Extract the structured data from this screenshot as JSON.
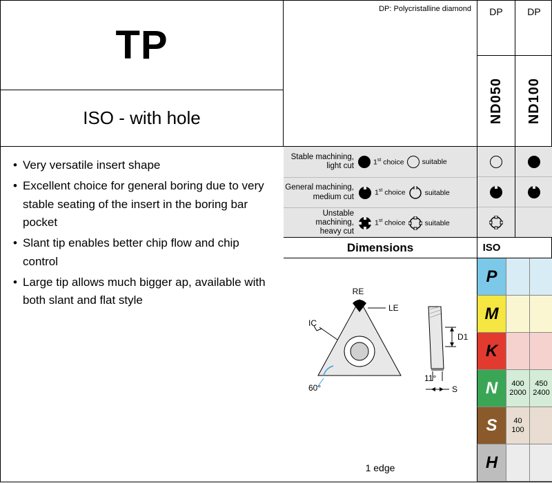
{
  "title": "TP",
  "subtitle": "ISO - with hole",
  "note": "DP: Polycristalline diamond",
  "grades": {
    "col1": {
      "dp": "DP",
      "code": "ND050"
    },
    "col2": {
      "dp": "DP",
      "code": "ND100"
    }
  },
  "bullets": [
    "Very versatile insert shape",
    "Excellent choice for general boring due to very stable seating of the insert in the boring bar pocket",
    "Slant tip enables better chip flow and chip control",
    "Large tip allows much bigger ap, available with both slant and flat style"
  ],
  "legend": {
    "rows": [
      {
        "l1": "Stable machining,",
        "l2": "light cut",
        "icon": "circle"
      },
      {
        "l1": "General machining,",
        "l2": "medium cut",
        "icon": "notch1"
      },
      {
        "l1": "Unstable machining,",
        "l2": "heavy cut",
        "icon": "notch4"
      }
    ],
    "first": "1",
    "first_suffix": "st",
    "first_label": " choice",
    "suitable": "suitable"
  },
  "legend_matrix": {
    "col1": [
      "circle-o",
      "notch1-f",
      "notch4-o"
    ],
    "col2": [
      "circle-f",
      "notch1-f",
      ""
    ]
  },
  "dim_header": "Dimensions",
  "iso_header": "ISO",
  "diagram": {
    "caption": "1 edge",
    "labels": {
      "RE": "RE",
      "LE": "LE",
      "IC": "IC",
      "D1": "D1",
      "angle60": "60°",
      "angle11": "11°",
      "S": "S"
    }
  },
  "iso_rows": [
    {
      "code": "P",
      "bg": "#7cc8e8",
      "fg": "#000",
      "cells_bg": "#d7ecf5",
      "c1": [
        "",
        ""
      ],
      "c2": [
        "",
        ""
      ]
    },
    {
      "code": "M",
      "bg": "#f5e641",
      "fg": "#000",
      "cells_bg": "#faf6d2",
      "c1": [
        "",
        ""
      ],
      "c2": [
        "",
        ""
      ]
    },
    {
      "code": "K",
      "bg": "#e33a2f",
      "fg": "#000",
      "cells_bg": "#f6d2cf",
      "c1": [
        "",
        ""
      ],
      "c2": [
        "",
        ""
      ]
    },
    {
      "code": "N",
      "bg": "#3aa655",
      "fg": "#fff",
      "cells_bg": "#d4ecd8",
      "c1": [
        "400",
        "2000"
      ],
      "c2": [
        "450",
        "2400"
      ]
    },
    {
      "code": "S",
      "bg": "#8a5a2b",
      "fg": "#fff",
      "cells_bg": "#e8ddd0",
      "c1": [
        "40",
        "100"
      ],
      "c2": [
        "",
        ""
      ]
    },
    {
      "code": "H",
      "bg": "#bdbdbd",
      "fg": "#000",
      "cells_bg": "#ececec",
      "c1": [
        "",
        ""
      ],
      "c2": [
        "",
        ""
      ]
    }
  ]
}
